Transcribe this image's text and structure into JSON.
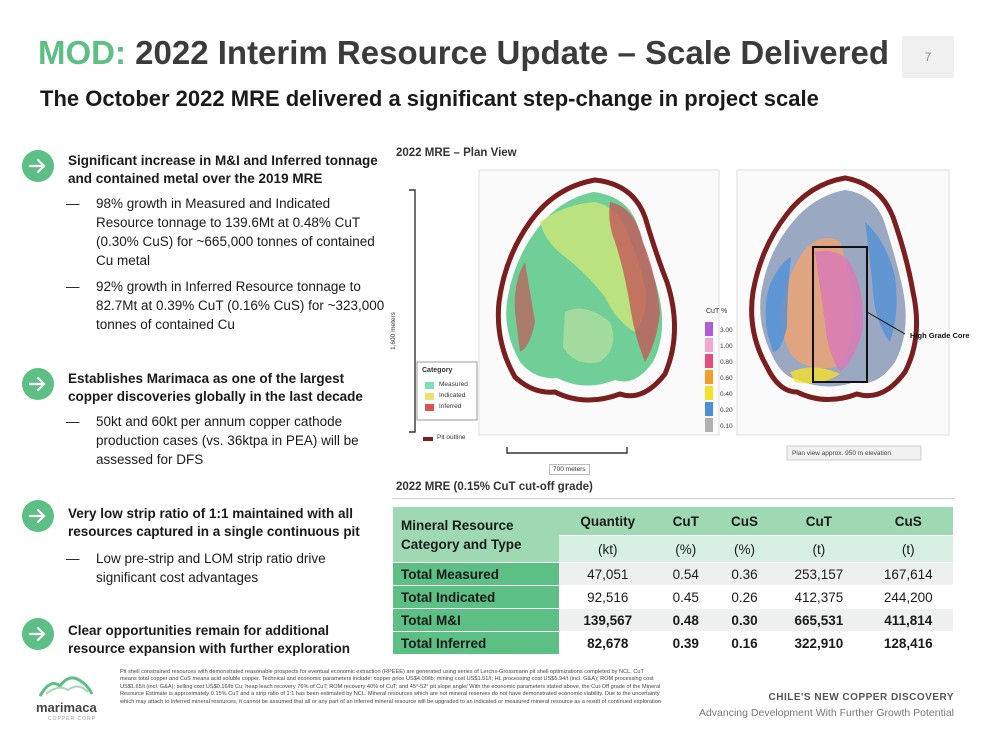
{
  "header": {
    "title_accent": "MOD:",
    "title_rest": "2022 Interim Resource Update – Scale Delivered",
    "subtitle": "The October 2022 MRE delivered a significant step-change in project scale",
    "page_number": "7"
  },
  "bullets": [
    {
      "heading": "Significant increase in M&I and Inferred tonnage and contained metal over the 2019 MRE",
      "subs": [
        "98% growth in Measured and Indicated Resource tonnage to 139.6Mt at 0.48% CuT (0.30% CuS) for ~665,000 tonnes of contained Cu metal",
        "92% growth in Inferred Resource tonnage to 82.7Mt at 0.39% CuT (0.16% CuS) for ~323,000 tonnes of contained Cu"
      ]
    },
    {
      "heading": "Establishes Marimaca as one of the largest copper discoveries globally in the last decade",
      "subs": [
        "50kt and 60kt per annum copper cathode production cases (vs. 36ktpa in PEA) will be assessed for DFS"
      ]
    },
    {
      "heading": "Very low strip ratio of 1:1 maintained with all resources captured in a single continuous pit",
      "subs": [
        "Low pre-strip and LOM strip ratio drive significant cost advantages"
      ]
    },
    {
      "heading": "Clear opportunities remain for additional resource expansion with further exploration",
      "subs": []
    }
  ],
  "plan_view": {
    "title": "2022 MRE – Plan View",
    "scale_vertical": "1,600 meters",
    "scale_horizontal": "700 meters",
    "category_legend": {
      "title": "Category",
      "items": [
        {
          "label": "Measured",
          "color": "#7ee0b0"
        },
        {
          "label": "Indicated",
          "color": "#e9e36a"
        },
        {
          "label": "Inferred",
          "color": "#d9534f"
        }
      ]
    },
    "pit_outline_label": "Pit outline",
    "cut_legend": {
      "title": "CuT %",
      "items": [
        {
          "label": "3.00",
          "color": "#b05cd8"
        },
        {
          "label": "1.00",
          "color": "#f3a6d0"
        },
        {
          "label": "0.80",
          "color": "#e64b7a"
        },
        {
          "label": "0.60",
          "color": "#f39c2a"
        },
        {
          "label": "0.40",
          "color": "#f5e02a"
        },
        {
          "label": "0.20",
          "color": "#4a8fd9"
        },
        {
          "label": "0.10",
          "color": "#b0b0b0"
        }
      ]
    },
    "high_grade_label": "High Grade Core",
    "elevation_note": "Plan view approx. 950 m elevation"
  },
  "table": {
    "title": "2022 MRE (0.15% CuT cut-off grade)",
    "category_header": "Mineral Resource Category and Type",
    "columns": [
      {
        "name": "Quantity",
        "unit": "(kt)"
      },
      {
        "name": "CuT",
        "unit": "(%)"
      },
      {
        "name": "CuS",
        "unit": "(%)"
      },
      {
        "name": "CuT",
        "unit": "(t)"
      },
      {
        "name": "CuS",
        "unit": "(t)"
      }
    ],
    "rows": [
      {
        "label": "Total Measured",
        "values": [
          "47,051",
          "0.54",
          "0.36",
          "253,157",
          "167,614"
        ]
      },
      {
        "label": "Total Indicated",
        "values": [
          "92,516",
          "0.45",
          "0.26",
          "412,375",
          "244,200"
        ]
      },
      {
        "label": "Total M&I",
        "values": [
          "139,567",
          "0.48",
          "0.30",
          "665,531",
          "411,814"
        ]
      },
      {
        "label": "Total Inferred",
        "values": [
          "82,678",
          "0.39",
          "0.16",
          "322,910",
          "128,416"
        ]
      }
    ]
  },
  "footnote": "Pit shell constrained resources with demonstrated reasonable prospects for eventual economic extraction (RPEEE) are generated using series of Lerchs-Grossmann pit shell optimizations completed by NCL. CuT means total copper and CuS means acid soluble copper. Technical and economic parameters include: copper price US$4.00/lb; mining cost US$1.51/t; HL processing cost US$5.94/t (incl. G&A); ROM processing cost US$1.65/t (incl. G&A); selling cost US$0.16/lb Cu; heap leach recovery 76% of CuT; ROM recovery 40% of CuT; and 45°-52° pit slope angle/ With the economic parameters stated above, the Cut-Off grade of the Mineral Resource Estimate is approximately 0.15% CuT and a strip ratio of 1:1 has been estimated by NCL. Mineral resources which are not mineral reserves do not have demonstrated economic viability. Due to the uncertainty which may attach to inferred mineral resources, it cannot be assumed that all or any part of an inferred mineral resource will be upgraded to an indicated or measured mineral resource as a result of continued exploration",
  "footer": {
    "logo_name": "marimaca",
    "logo_tagline": "COPPER CORP",
    "tagline_1": "CHILE'S NEW COPPER DISCOVERY",
    "tagline_2": "Advancing Development With Further Growth Potential"
  },
  "colors": {
    "accent": "#5cbf84",
    "table_header": "#9fd9b4",
    "table_row_label": "#5cbf84"
  }
}
